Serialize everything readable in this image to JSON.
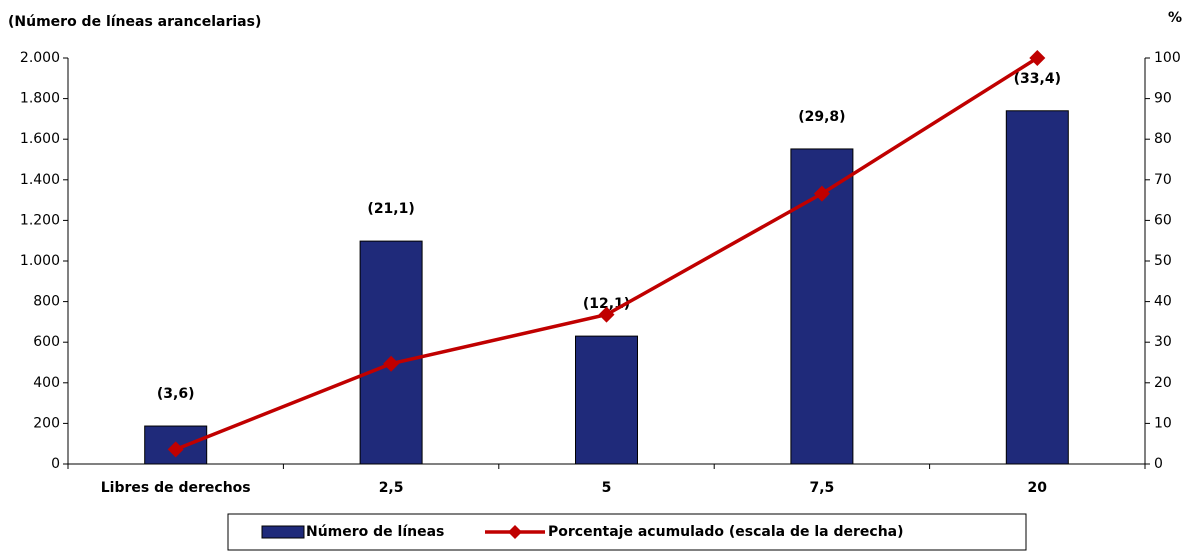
{
  "chart_data": {
    "type": "bar-line",
    "y_label": "(Número de líneas arancelarias)",
    "y2_label": "%",
    "categories": [
      "Libres de derechos",
      "2,5",
      "5",
      "7,5",
      "20"
    ],
    "series": [
      {
        "name": "Número de líneas",
        "type": "bar",
        "color": "#1f2a7a",
        "values": [
          187,
          1098,
          630,
          1552,
          1740
        ]
      },
      {
        "name": "Porcentaje acumulado (escala de la derecha)",
        "type": "line",
        "axis": "y2",
        "color": "#c00000",
        "values": [
          3.6,
          24.7,
          36.8,
          66.6,
          100
        ]
      }
    ],
    "annotations": [
      "(3,6)",
      "(21,1)",
      "(12,1)",
      "(29,8)",
      "(33,4)"
    ],
    "ylim": [
      0,
      2000
    ],
    "yticks": [
      0,
      200,
      400,
      600,
      800,
      {
        "value": 1000,
        "label": "1.000"
      },
      {
        "value": 1200,
        "label": "1.200"
      },
      {
        "value": 1400,
        "label": "1.400"
      },
      {
        "value": 1600,
        "label": "1.600"
      },
      {
        "value": 1800,
        "label": "1.800"
      },
      {
        "value": 2000,
        "label": "2.000"
      }
    ],
    "y2lim": [
      0,
      100
    ],
    "y2ticks": [
      0,
      10,
      20,
      30,
      40,
      50,
      60,
      70,
      80,
      90,
      100
    ],
    "grid": false,
    "legend": "bottom"
  }
}
